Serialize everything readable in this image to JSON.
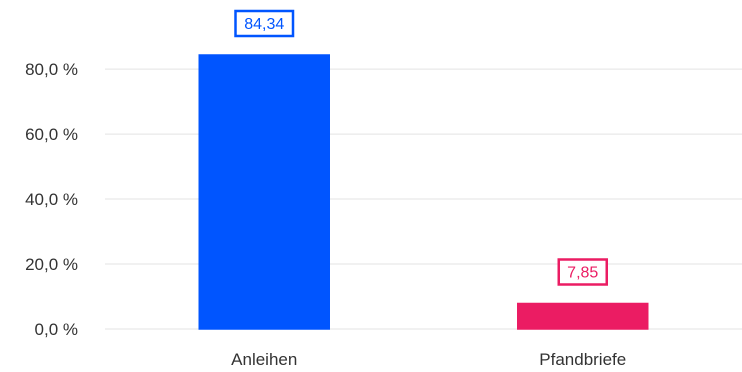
{
  "chart_data": {
    "type": "bar",
    "categories": [
      "Anleihen",
      "Pfandbriefe"
    ],
    "values": [
      84.34,
      7.85
    ],
    "value_labels": [
      "84,34",
      "7,85"
    ],
    "colors": [
      "#0055ff",
      "#eb1c63"
    ],
    "y_ticks": [
      {
        "value": 0,
        "label": "0,0 %"
      },
      {
        "value": 20,
        "label": "20,0 %"
      },
      {
        "value": 40,
        "label": "40,0 %"
      },
      {
        "value": 60,
        "label": "60,0 %"
      },
      {
        "value": 80,
        "label": "80,0 %"
      }
    ],
    "ylim": [
      0,
      84.34
    ],
    "grid": true,
    "title": "",
    "xlabel": "",
    "ylabel": ""
  }
}
